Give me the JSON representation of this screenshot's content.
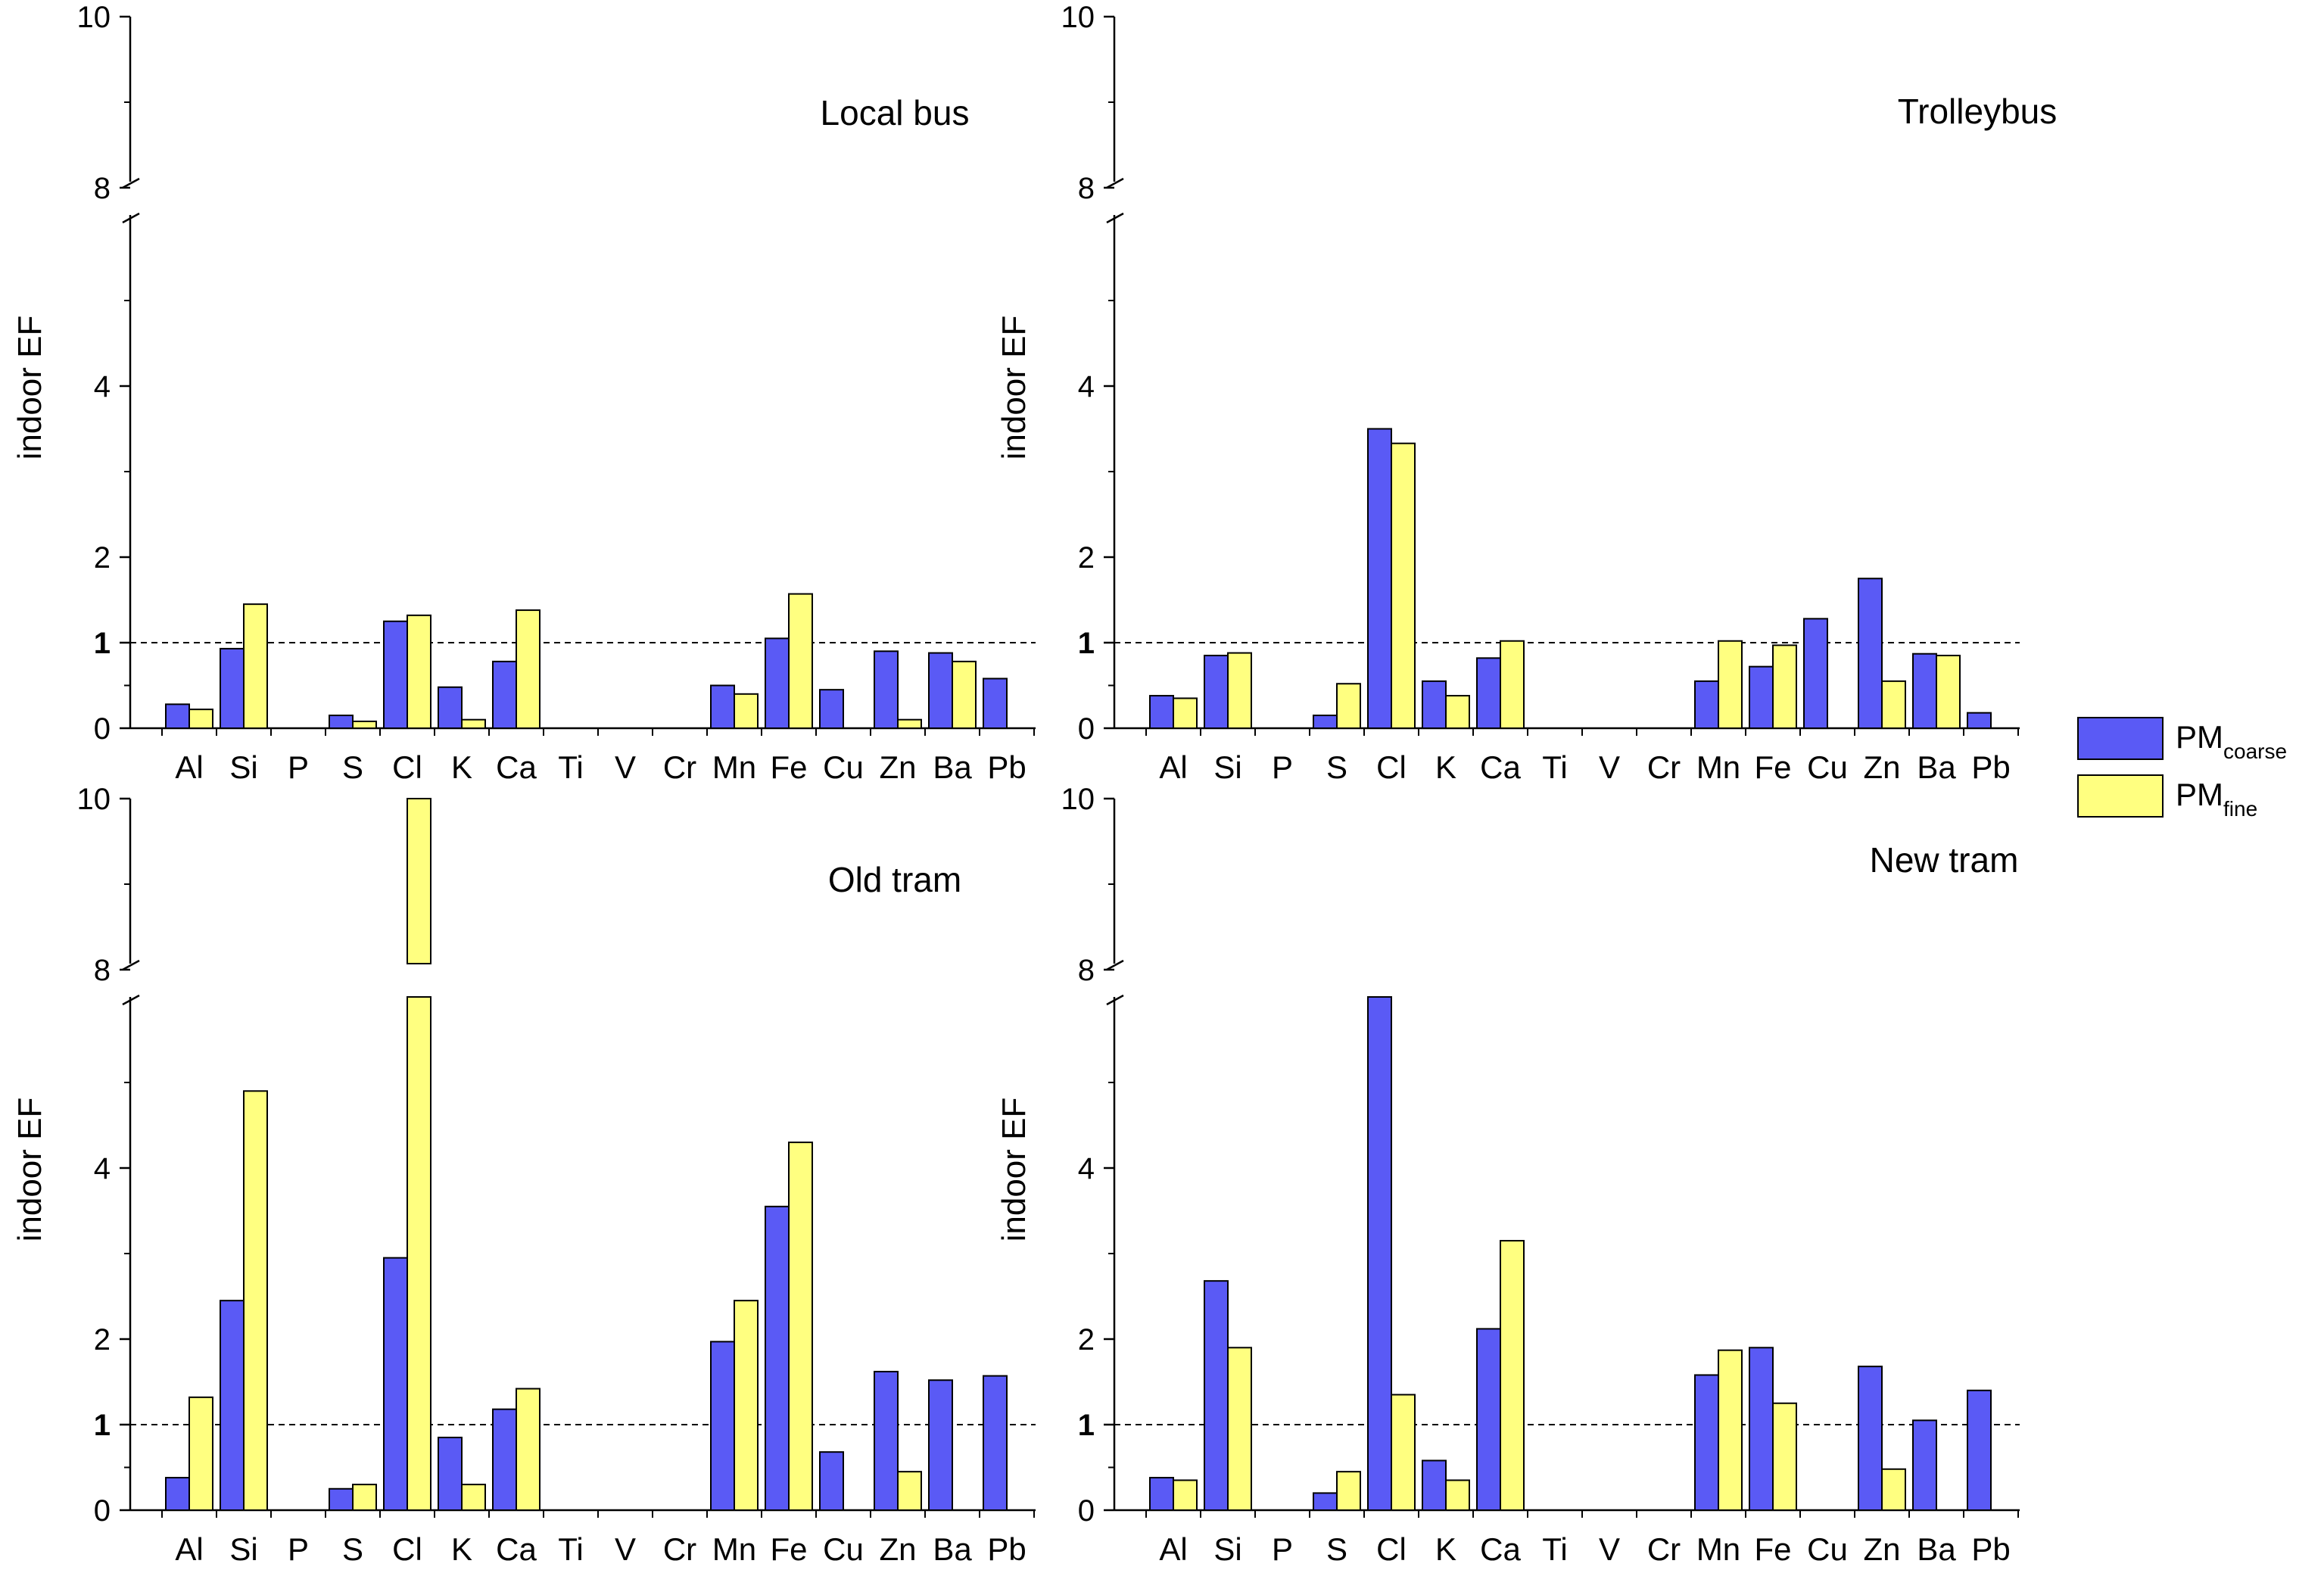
{
  "chart_data": [
    {
      "type": "bar",
      "title": "Local bus",
      "ylabel": "indoor EF",
      "xlabel": "",
      "ylim": [
        0,
        10
      ],
      "y_axis_break": [
        6,
        8
      ],
      "yticks": [
        "0",
        "1",
        "2",
        "4",
        "8",
        "10"
      ],
      "reference_line": 1,
      "categories": [
        "Al",
        "Si",
        "P",
        "S",
        "Cl",
        "K",
        "Ca",
        "Ti",
        "V",
        "Cr",
        "Mn",
        "Fe",
        "Cu",
        "Zn",
        "Ba",
        "Pb"
      ],
      "series": [
        {
          "name": "PMcoarse",
          "values": [
            0.28,
            0.93,
            0,
            0.15,
            1.25,
            0.48,
            0.78,
            0,
            0,
            0,
            0.5,
            1.05,
            0.45,
            0.9,
            0.88,
            0.58
          ]
        },
        {
          "name": "PMfine",
          "values": [
            0.22,
            1.45,
            0,
            0.08,
            1.32,
            0.1,
            1.38,
            0,
            0,
            0,
            0.4,
            1.57,
            0,
            0.1,
            0.78,
            0
          ]
        }
      ]
    },
    {
      "type": "bar",
      "title": "Trolleybus",
      "ylabel": "indoor EF",
      "xlabel": "",
      "ylim": [
        0,
        10
      ],
      "y_axis_break": [
        6,
        8
      ],
      "yticks": [
        "0",
        "1",
        "2",
        "4",
        "8",
        "10"
      ],
      "reference_line": 1,
      "categories": [
        "Al",
        "Si",
        "P",
        "S",
        "Cl",
        "K",
        "Ca",
        "Ti",
        "V",
        "Cr",
        "Mn",
        "Fe",
        "Cu",
        "Zn",
        "Ba",
        "Pb"
      ],
      "series": [
        {
          "name": "PMcoarse",
          "values": [
            0.38,
            0.85,
            0,
            0.15,
            3.5,
            0.55,
            0.82,
            0,
            0,
            0,
            0.55,
            0.72,
            1.28,
            1.75,
            0.87,
            0.18
          ]
        },
        {
          "name": "PMfine",
          "values": [
            0.35,
            0.88,
            0,
            0.52,
            3.33,
            0.38,
            1.02,
            0,
            0,
            0,
            1.02,
            0.97,
            0,
            0.55,
            0.85,
            0
          ]
        }
      ]
    },
    {
      "type": "bar",
      "title": "Old tram",
      "ylabel": "indoor EF",
      "xlabel": "",
      "ylim": [
        0,
        10
      ],
      "y_axis_break": [
        6,
        8
      ],
      "yticks": [
        "0",
        "1",
        "2",
        "4",
        "8",
        "10"
      ],
      "reference_line": 1,
      "categories": [
        "Al",
        "Si",
        "P",
        "S",
        "Cl",
        "K",
        "Ca",
        "Ti",
        "V",
        "Cr",
        "Mn",
        "Fe",
        "Cu",
        "Zn",
        "Ba",
        "Pb"
      ],
      "series": [
        {
          "name": "PMcoarse",
          "values": [
            0.38,
            2.45,
            0,
            0.25,
            2.95,
            0.85,
            1.18,
            0,
            0,
            0,
            1.97,
            3.55,
            0.68,
            1.62,
            1.52,
            1.57
          ]
        },
        {
          "name": "PMfine",
          "values": [
            1.32,
            4.9,
            0,
            0.3,
            10,
            0.3,
            1.42,
            0,
            0,
            0,
            2.45,
            4.3,
            0,
            0.45,
            0,
            0
          ]
        }
      ]
    },
    {
      "type": "bar",
      "title": "New tram",
      "ylabel": "indoor EF",
      "xlabel": "",
      "ylim": [
        0,
        10
      ],
      "y_axis_break": [
        6,
        8
      ],
      "yticks": [
        "0",
        "1",
        "2",
        "4",
        "8",
        "10"
      ],
      "reference_line": 1,
      "categories": [
        "Al",
        "Si",
        "P",
        "S",
        "Cl",
        "K",
        "Ca",
        "Ti",
        "V",
        "Cr",
        "Mn",
        "Fe",
        "Cu",
        "Zn",
        "Ba",
        "Pb"
      ],
      "series": [
        {
          "name": "PMcoarse",
          "values": [
            0.38,
            2.68,
            0,
            0.2,
            7.9,
            0.58,
            2.12,
            0,
            0,
            0,
            1.58,
            1.9,
            0,
            1.68,
            1.05,
            1.4
          ]
        },
        {
          "name": "PMfine",
          "values": [
            0.35,
            1.9,
            0,
            0.45,
            1.35,
            0.35,
            3.15,
            0,
            0,
            0,
            1.87,
            1.25,
            0,
            0.48,
            0,
            0
          ]
        }
      ]
    }
  ],
  "legend": {
    "placement": "right",
    "items": [
      {
        "label": "PM",
        "subscript": "coarse",
        "color": "#5a5af5"
      },
      {
        "label": "PM",
        "subscript": "fine",
        "color": "#ffff80"
      }
    ]
  },
  "colors": {
    "coarse": "#5a5af5",
    "fine": "#ffff80",
    "axis": "#000000"
  }
}
